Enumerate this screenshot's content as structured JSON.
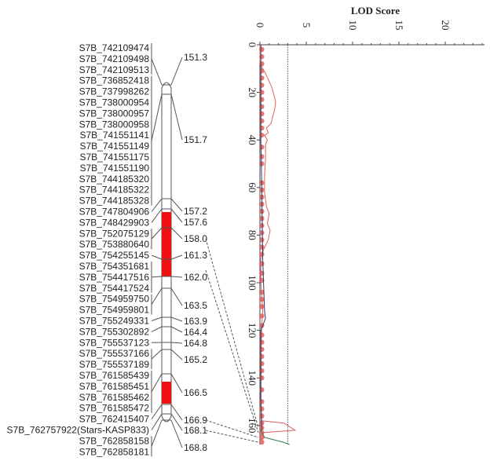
{
  "linkage_map": {
    "markers": [
      "S7B_742109474",
      "S7B_742109498",
      "S7B_742109513",
      "S7B_736852418",
      "S7B_737998262",
      "S7B_738000954",
      "S7B_738000957",
      "S7B_738000958",
      "S7B_741551141",
      "S7B_741551149",
      "S7B_741551175",
      "S7B_741551190",
      "S7B_744185320",
      "S7B_744185322",
      "S7B_744185328",
      "S7B_747804906",
      "S7B_748429903",
      "S7B_752075129",
      "S7B_753880640",
      "S7B_754255145",
      "S7B_754351681",
      "S7B_754417516",
      "S7B_754417524",
      "S7B_754959750",
      "S7B_754959801",
      "S7B_755249331",
      "S7B_755302892",
      "S7B_755537123",
      "S7B_755537166",
      "S7B_755537189",
      "S7B_761585439",
      "S7B_761585451",
      "S7B_761585462",
      "S7B_761585472",
      "S7B_762415407",
      "S7B_762757922(Stars-KASP833)",
      "S7B_762858158",
      "S7B_762858181"
    ],
    "positions": [
      {
        "label": "151.3",
        "markers": [
          0,
          2
        ]
      },
      {
        "label": "151.7",
        "markers": [
          3,
          14
        ]
      },
      {
        "label": "157.2",
        "markers": [
          15,
          15
        ]
      },
      {
        "label": "157.6",
        "markers": [
          16,
          16
        ]
      },
      {
        "label": "158.0",
        "markers": [
          17,
          18
        ]
      },
      {
        "label": "161.3",
        "markers": [
          19,
          19
        ]
      },
      {
        "label": "162.0",
        "markers": [
          20,
          22
        ]
      },
      {
        "label": "163.5",
        "markers": [
          23,
          24
        ]
      },
      {
        "label": "163.9",
        "markers": [
          25,
          25
        ]
      },
      {
        "label": "164.4",
        "markers": [
          26,
          26
        ]
      },
      {
        "label": "164.8",
        "markers": [
          27,
          27
        ]
      },
      {
        "label": "165.2",
        "markers": [
          28,
          29
        ]
      },
      {
        "label": "166.5",
        "markers": [
          30,
          33
        ]
      },
      {
        "label": "166.9",
        "markers": [
          34,
          34
        ]
      },
      {
        "label": "168.1",
        "markers": [
          35,
          35
        ]
      },
      {
        "label": "168.8",
        "markers": [
          36,
          37
        ]
      }
    ],
    "highlight_intervals": [
      [
        "157.6",
        "162.0"
      ],
      [
        "166.5",
        "166.5"
      ]
    ],
    "highlight_color": "#ee1111"
  },
  "chart_data": {
    "type": "line",
    "title": "LOD Score",
    "lod_ticks": [
      "0",
      "5",
      "10",
      "15",
      "20"
    ],
    "position_ticks": [
      "0",
      "20",
      "40",
      "60",
      "80",
      "100",
      "120",
      "140",
      "160"
    ],
    "lod_range": [
      0,
      24
    ],
    "position_range": [
      0,
      168
    ],
    "threshold": 3.0,
    "series": [
      {
        "color": "#e06060",
        "points": [
          [
            0,
            0
          ],
          [
            8,
            0
          ],
          [
            12,
            0.6
          ],
          [
            18,
            1.3
          ],
          [
            24,
            1.7
          ],
          [
            27,
            1.6
          ],
          [
            33,
            1.2
          ],
          [
            35,
            0.7
          ],
          [
            37,
            0.9
          ],
          [
            38,
            0.5
          ],
          [
            40,
            0.8
          ],
          [
            42,
            0.6
          ],
          [
            48,
            0.6
          ],
          [
            55,
            0.5
          ],
          [
            62,
            0.5
          ],
          [
            68,
            0.7
          ],
          [
            71,
            1.0
          ],
          [
            75,
            0.8
          ],
          [
            78,
            1.1
          ],
          [
            82,
            0.9
          ],
          [
            86,
            0.4
          ],
          [
            90,
            0.1
          ],
          [
            100,
            0.1
          ],
          [
            112,
            0.3
          ],
          [
            118,
            0.2
          ],
          [
            130,
            0.1
          ],
          [
            150,
            0.1
          ],
          [
            158,
            0.2
          ],
          [
            159,
            2.6
          ],
          [
            162,
            3.8
          ],
          [
            163,
            0.3
          ],
          [
            166,
            0.2
          ]
        ]
      },
      {
        "color": "#2a7a4a",
        "points": [
          [
            162,
            0.1
          ],
          [
            165,
            0.5
          ],
          [
            167,
            2.5
          ],
          [
            168,
            3.2
          ]
        ]
      },
      {
        "color": "#2b3a6a",
        "points": [
          [
            0,
            0.1
          ],
          [
            40,
            0.1
          ],
          [
            60,
            0.2
          ],
          [
            90,
            0.3
          ],
          [
            112,
            0.5
          ],
          [
            115,
            0.6
          ],
          [
            120,
            0.1
          ],
          [
            150,
            0.1
          ],
          [
            162,
            0.2
          ]
        ]
      }
    ],
    "marker_lod": 0.2,
    "marker_positions": [
      2,
      5,
      8,
      11,
      14,
      17,
      20,
      23,
      26,
      29,
      32,
      35,
      38,
      43,
      47,
      50,
      58,
      61,
      64,
      67,
      70,
      73,
      76,
      79,
      82,
      85,
      88,
      92,
      96,
      99,
      104,
      107,
      110,
      114,
      118,
      122,
      125,
      128,
      131,
      134,
      137,
      140,
      145,
      150,
      153,
      156,
      159,
      161,
      163,
      165,
      167
    ],
    "marker_color": "#e05555"
  }
}
